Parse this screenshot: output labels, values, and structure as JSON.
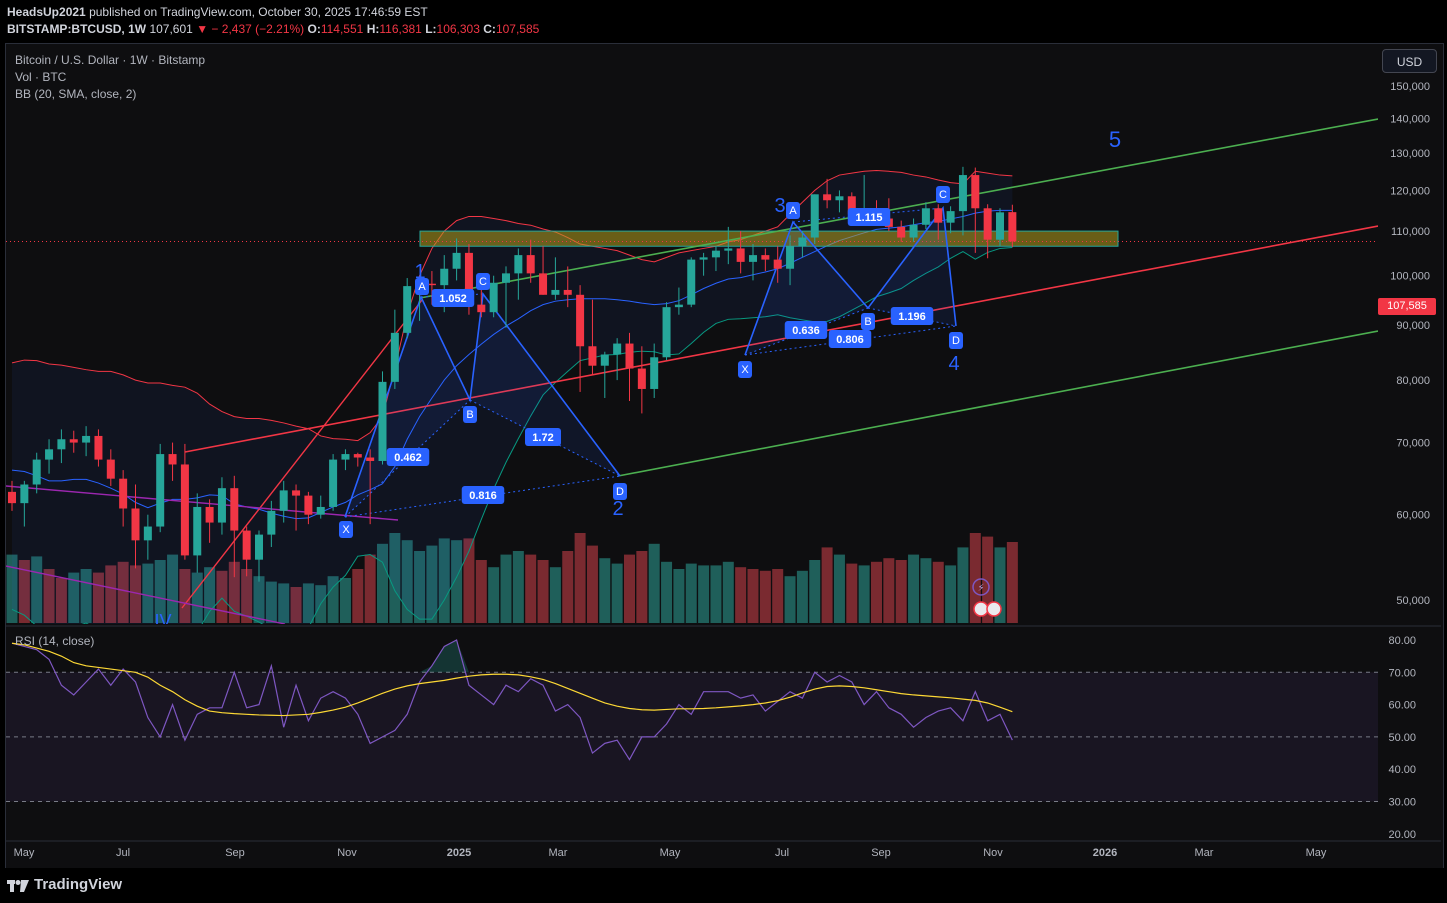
{
  "header": {
    "author": "HeadsUp2021",
    "published_text": "published on TradingView.com, October 30, 2025 17:46:59 EST",
    "symbol": "BITSTAMP:BTCUSD, 1W",
    "last": "107,601",
    "change": "− 2,437 (−2.21%)",
    "o_label": "O:",
    "o_value": "114,551",
    "h_label": "H:",
    "h_value": "116,381",
    "l_label": "L:",
    "l_value": "106,303",
    "c_label": "C:",
    "c_value": "107,585"
  },
  "legend": {
    "title": "Bitcoin / U.S. Dollar · 1W · Bitstamp",
    "volume": "Vol · BTC",
    "bb": "BB (20, SMA, close, 2)",
    "rsi": "RSI (14, close)"
  },
  "currency_button": "USD",
  "current_price_tag": "107,585",
  "colors": {
    "up": "#26a69a",
    "down": "#f23645",
    "bb_upper": "#f23645",
    "bb_basis": "#2962ff",
    "bb_lower": "#089981",
    "harmonic": "#2962ff",
    "channel_green": "#4caf50",
    "channel_red": "#f23645",
    "rsi": "#7e57c2",
    "rsi_ma": "#fdd835",
    "zone": "#b5a11d"
  },
  "chart_data": {
    "type": "candlestick",
    "price_axis": {
      "ticks": [
        "150,000",
        "140,000",
        "130,000",
        "120,000",
        "110,000",
        "100,000",
        "90,000",
        "80,000",
        "70,000",
        "60,000",
        "50,000"
      ],
      "ylim": [
        45000,
        152000
      ]
    },
    "time_axis": {
      "ticks": [
        "May",
        "Jul",
        "Sep",
        "Nov",
        "2025",
        "Mar",
        "May",
        "Jul",
        "Sep",
        "Nov",
        "2026",
        "Mar",
        "May"
      ]
    },
    "rsi_axis": {
      "ticks": [
        "80.00",
        "70.00",
        "60.00",
        "50.00",
        "40.00",
        "30.00",
        "20.00"
      ],
      "ylim": [
        18,
        82
      ],
      "overbought": 70,
      "middle": 50,
      "oversold": 30
    },
    "candles": [
      [
        63000,
        64500,
        60500,
        61500
      ],
      [
        61500,
        64500,
        58500,
        64000
      ],
      [
        64000,
        68500,
        62800,
        67500
      ],
      [
        67500,
        70500,
        65500,
        69000
      ],
      [
        69000,
        72000,
        67000,
        70500
      ],
      [
        70500,
        71800,
        68500,
        70000
      ],
      [
        70000,
        72500,
        68000,
        71000
      ],
      [
        71000,
        72000,
        66500,
        67500
      ],
      [
        67500,
        69000,
        63800,
        64800
      ],
      [
        64800,
        66000,
        58500,
        60800
      ],
      [
        60800,
        64000,
        53500,
        56800
      ],
      [
        56800,
        60000,
        54500,
        58500
      ],
      [
        58500,
        69800,
        57800,
        68300
      ],
      [
        68300,
        70000,
        64500,
        66800
      ],
      [
        66800,
        69800,
        54500,
        55000
      ],
      [
        55000,
        62800,
        53000,
        61000
      ],
      [
        61000,
        62000,
        56500,
        59000
      ],
      [
        59000,
        65000,
        57500,
        63500
      ],
      [
        63500,
        65200,
        52500,
        58000
      ],
      [
        58000,
        58500,
        52600,
        54500
      ],
      [
        54500,
        58000,
        52000,
        57500
      ],
      [
        57500,
        61800,
        56000,
        60500
      ],
      [
        60500,
        64500,
        59000,
        63200
      ],
      [
        63200,
        64000,
        58000,
        62500
      ],
      [
        62500,
        63000,
        58800,
        60000
      ],
      [
        60000,
        62500,
        59500,
        61000
      ],
      [
        61000,
        68300,
        60500,
        67500
      ],
      [
        67500,
        69000,
        66000,
        68300
      ],
      [
        68300,
        68500,
        66500,
        67800
      ],
      [
        67800,
        69000,
        58800,
        67300
      ],
      [
        67300,
        81500,
        66800,
        79700
      ],
      [
        79700,
        93000,
        78500,
        88500
      ],
      [
        88500,
        99500,
        87500,
        97800
      ],
      [
        97800,
        99500,
        90800,
        98300
      ],
      [
        98300,
        101000,
        94000,
        98000
      ],
      [
        98000,
        104500,
        92500,
        101500
      ],
      [
        101500,
        108300,
        99000,
        105000
      ],
      [
        105000,
        107000,
        92000,
        94000
      ],
      [
        94000,
        99500,
        91500,
        92500
      ],
      [
        92500,
        100000,
        91500,
        98500
      ],
      [
        98500,
        102000,
        89500,
        100500
      ],
      [
        100500,
        106000,
        95000,
        104500
      ],
      [
        104500,
        108000,
        98500,
        100500
      ],
      [
        100500,
        106500,
        96000,
        96000
      ],
      [
        96000,
        104000,
        95000,
        97000
      ],
      [
        97000,
        102000,
        93500,
        96000
      ],
      [
        96000,
        98000,
        78000,
        86000
      ],
      [
        86000,
        95000,
        81000,
        82500
      ],
      [
        82500,
        85000,
        77000,
        84500
      ],
      [
        84500,
        87500,
        80000,
        86500
      ],
      [
        86500,
        88500,
        76500,
        82000
      ],
      [
        82000,
        86000,
        74500,
        78500
      ],
      [
        78500,
        86500,
        77000,
        84000
      ],
      [
        84000,
        94500,
        83500,
        93500
      ],
      [
        93500,
        97500,
        92000,
        94000
      ],
      [
        94000,
        104000,
        93500,
        103500
      ],
      [
        103500,
        105000,
        100000,
        104000
      ],
      [
        104000,
        106500,
        101000,
        105500
      ],
      [
        105500,
        111000,
        102500,
        106000
      ],
      [
        106000,
        110000,
        100500,
        103000
      ],
      [
        103000,
        107000,
        99000,
        104500
      ],
      [
        104500,
        106000,
        101000,
        103500
      ],
      [
        103500,
        106500,
        98500,
        101500
      ],
      [
        101500,
        109000,
        98000,
        106500
      ],
      [
        106500,
        110000,
        104000,
        108500
      ],
      [
        108500,
        119000,
        107000,
        119000
      ],
      [
        119000,
        123000,
        115500,
        117500
      ],
      [
        117500,
        120000,
        114500,
        118500
      ],
      [
        118500,
        119500,
        112000,
        114000
      ],
      [
        114000,
        124000,
        113000,
        115500
      ],
      [
        115500,
        117500,
        112000,
        113000
      ],
      [
        113000,
        118000,
        110000,
        111000
      ],
      [
        111000,
        112500,
        107500,
        108500
      ],
      [
        108500,
        113000,
        107500,
        111500
      ],
      [
        111500,
        117000,
        110500,
        115500
      ],
      [
        115500,
        116500,
        108000,
        112000
      ],
      [
        112000,
        116000,
        109500,
        114800
      ],
      [
        114800,
        126200,
        109000,
        124000
      ],
      [
        124000,
        126000,
        105000,
        115500
      ],
      [
        115500,
        116500,
        103800,
        108000
      ],
      [
        108000,
        115500,
        106500,
        114500
      ],
      [
        114551,
        116381,
        106303,
        107585
      ]
    ],
    "volume": [
      [
        38,
        "up"
      ],
      [
        35,
        "down"
      ],
      [
        37,
        "up"
      ],
      [
        30,
        "down"
      ],
      [
        25,
        "down"
      ],
      [
        28,
        "up"
      ],
      [
        30,
        "up"
      ],
      [
        28,
        "down"
      ],
      [
        32,
        "down"
      ],
      [
        34,
        "down"
      ],
      [
        32,
        "down"
      ],
      [
        33,
        "up"
      ],
      [
        35,
        "up"
      ],
      [
        38,
        "up"
      ],
      [
        30,
        "down"
      ],
      [
        28,
        "up"
      ],
      [
        31,
        "up"
      ],
      [
        29,
        "down"
      ],
      [
        34,
        "down"
      ],
      [
        30,
        "down"
      ],
      [
        26,
        "up"
      ],
      [
        23,
        "up"
      ],
      [
        22,
        "up"
      ],
      [
        20,
        "down"
      ],
      [
        22,
        "up"
      ],
      [
        21,
        "up"
      ],
      [
        26,
        "up"
      ],
      [
        25,
        "up"
      ],
      [
        30,
        "down"
      ],
      [
        38,
        "down"
      ],
      [
        44,
        "up"
      ],
      [
        50,
        "up"
      ],
      [
        46,
        "up"
      ],
      [
        40,
        "up"
      ],
      [
        43,
        "up"
      ],
      [
        47,
        "up"
      ],
      [
        46,
        "up"
      ],
      [
        47,
        "down"
      ],
      [
        35,
        "down"
      ],
      [
        31,
        "up"
      ],
      [
        38,
        "up"
      ],
      [
        40,
        "up"
      ],
      [
        38,
        "down"
      ],
      [
        35,
        "down"
      ],
      [
        31,
        "up"
      ],
      [
        40,
        "down"
      ],
      [
        50,
        "down"
      ],
      [
        43,
        "down"
      ],
      [
        36,
        "up"
      ],
      [
        33,
        "up"
      ],
      [
        38,
        "down"
      ],
      [
        40,
        "down"
      ],
      [
        44,
        "up"
      ],
      [
        34,
        "up"
      ],
      [
        30,
        "up"
      ],
      [
        33,
        "up"
      ],
      [
        32,
        "up"
      ],
      [
        32,
        "up"
      ],
      [
        34,
        "up"
      ],
      [
        31,
        "down"
      ],
      [
        30,
        "down"
      ],
      [
        29,
        "down"
      ],
      [
        30,
        "down"
      ],
      [
        26,
        "up"
      ],
      [
        29,
        "up"
      ],
      [
        35,
        "up"
      ],
      [
        42,
        "down"
      ],
      [
        38,
        "up"
      ],
      [
        33,
        "down"
      ],
      [
        32,
        "up"
      ],
      [
        34,
        "down"
      ],
      [
        36,
        "down"
      ],
      [
        35,
        "down"
      ],
      [
        38,
        "up"
      ],
      [
        36,
        "up"
      ],
      [
        34,
        "down"
      ],
      [
        32,
        "up"
      ],
      [
        42,
        "up"
      ],
      [
        50,
        "down"
      ],
      [
        48,
        "down"
      ],
      [
        42,
        "up"
      ],
      [
        45,
        "down"
      ]
    ],
    "bb_upper": [
      83000,
      83500,
      83400,
      82800,
      82600,
      82200,
      81800,
      81500,
      81500,
      80900,
      80000,
      79500,
      79500,
      79100,
      78800,
      77800,
      76000,
      74800,
      74000,
      73700,
      73700,
      73400,
      73000,
      72500,
      72100,
      71000,
      70600,
      70500,
      70300,
      71500,
      74000,
      82000,
      92000,
      100000,
      106000,
      110000,
      112500,
      113500,
      113500,
      113000,
      112500,
      111800,
      111400,
      110500,
      109800,
      108500,
      107000,
      106500,
      106000,
      105500,
      104500,
      103500,
      103000,
      104000,
      105000,
      105500,
      106000,
      106500,
      107500,
      108000,
      109000,
      110000,
      111000,
      114000,
      117000,
      120000,
      122500,
      124000,
      124500,
      125000,
      125200,
      125000,
      124700,
      124000,
      123500,
      122700,
      122000,
      121700,
      125000,
      124500,
      124000,
      123800
    ],
    "bb_basis": [
      66000,
      65800,
      65200,
      64500,
      64500,
      64700,
      64700,
      64200,
      63500,
      62700,
      61600,
      60900,
      61500,
      62000,
      62000,
      62200,
      62600,
      62500,
      61400,
      61000,
      60700,
      60200,
      59800,
      59500,
      59600,
      60300,
      61000,
      61600,
      62600,
      63300,
      64100,
      66500,
      70500,
      74000,
      77000,
      80000,
      82500,
      84500,
      86400,
      88200,
      89800,
      91200,
      92800,
      94000,
      94700,
      95000,
      95200,
      95200,
      95200,
      95000,
      94700,
      94300,
      94000,
      94200,
      94800,
      96000,
      97300,
      98400,
      99300,
      99600,
      100200,
      100800,
      101500,
      102700,
      104000,
      105300,
      106600,
      107800,
      108700,
      109600,
      110400,
      110700,
      111000,
      111500,
      112000,
      112300,
      112900,
      113500,
      114300,
      114800,
      115000,
      115000
    ],
    "bb_lower": [
      49000,
      48400,
      47300,
      46200,
      46700,
      47200,
      47600,
      46900,
      45600,
      44400,
      43400,
      42500,
      43500,
      44900,
      45700,
      46700,
      48800,
      50200,
      48800,
      48300,
      47700,
      47000,
      46600,
      46500,
      47100,
      49600,
      51400,
      52700,
      54900,
      55100,
      54200,
      51000,
      49000,
      48000,
      48000,
      50000,
      52500,
      55500,
      59400,
      63400,
      67100,
      70600,
      74100,
      77500,
      79600,
      81500,
      83400,
      83900,
      84400,
      84500,
      84900,
      85100,
      85000,
      84400,
      84600,
      86500,
      88600,
      90300,
      91100,
      91200,
      91400,
      91600,
      92000,
      91400,
      91000,
      90600,
      90700,
      91600,
      92900,
      94200,
      95600,
      96400,
      97300,
      99000,
      100500,
      101900,
      103800,
      105300,
      103600,
      105100,
      106000,
      106200
    ],
    "rsi": [
      79,
      78,
      77,
      74,
      66,
      63,
      67,
      71,
      66,
      71,
      67,
      56,
      50,
      60,
      49,
      57,
      59,
      59,
      70,
      59,
      60,
      72,
      53,
      66,
      55,
      62,
      64,
      62,
      57,
      48,
      50,
      52,
      57,
      67,
      72,
      78,
      80,
      66,
      63,
      60,
      66,
      64,
      68,
      66,
      58,
      60,
      56,
      45,
      48,
      49,
      43,
      50,
      50,
      54,
      60,
      57,
      64,
      64,
      64,
      62,
      63,
      58,
      61,
      64,
      62,
      70,
      67,
      69,
      67,
      60,
      64,
      59,
      57,
      53,
      56,
      58,
      59,
      55,
      64,
      55,
      57,
      49
    ],
    "rsi_ma": [
      79,
      78.5,
      77.5,
      76.5,
      75,
      73,
      72,
      71.5,
      71,
      70.5,
      70,
      68.5,
      66,
      64,
      61.5,
      59.5,
      58,
      57.5,
      57.2,
      57,
      56.8,
      56.7,
      56.6,
      56.8,
      57,
      57.6,
      58.3,
      59.2,
      60.5,
      62,
      63.5,
      64.8,
      65.8,
      66.5,
      67,
      67.5,
      68.2,
      68.8,
      69.2,
      69.4,
      69.4,
      69.2,
      68.6,
      67.8,
      66.5,
      65,
      63.5,
      62,
      60.5,
      59.5,
      58.8,
      58.4,
      58.3,
      58.5,
      58.7,
      58.7,
      58.8,
      59,
      59.3,
      59.6,
      60,
      60.5,
      61.2,
      62.3,
      63.6,
      64.8,
      65.6,
      65.8,
      65.6,
      65.2,
      64.6,
      64,
      63.4,
      63,
      62.7,
      62.4,
      62.1,
      61.7,
      61.3,
      60.5,
      59.2,
      57.8
    ],
    "harmonic_labels": [
      "X",
      "A",
      "B",
      "C",
      "D",
      "X",
      "A",
      "B",
      "C",
      "D"
    ],
    "ratio_labels": [
      "1.052",
      "0.462",
      "0.816",
      "1.72",
      "1.115",
      "0.636",
      "0.806",
      "1.196"
    ],
    "wave_labels": [
      "1",
      "2",
      "3",
      "4",
      "5",
      "IV"
    ]
  }
}
